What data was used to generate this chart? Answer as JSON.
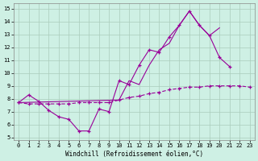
{
  "xlabel": "Windchill (Refroidissement éolien,°C)",
  "background_color": "#cef0e4",
  "grid_color": "#aaccbb",
  "line_color": "#990099",
  "xlim": [
    -0.5,
    23.5
  ],
  "ylim": [
    4.8,
    15.4
  ],
  "xticks": [
    0,
    1,
    2,
    3,
    4,
    5,
    6,
    7,
    8,
    9,
    10,
    11,
    12,
    13,
    14,
    15,
    16,
    17,
    18,
    19,
    20,
    21,
    22,
    23
  ],
  "yticks": [
    5,
    6,
    7,
    8,
    9,
    10,
    11,
    12,
    13,
    14,
    15
  ],
  "line1_x": [
    0,
    1,
    2,
    3,
    4,
    5,
    6,
    7,
    8,
    9,
    10,
    11,
    12,
    13,
    14,
    15,
    16,
    17,
    18,
    19,
    20,
    21
  ],
  "line1_y": [
    7.7,
    8.3,
    7.8,
    7.1,
    6.6,
    6.4,
    5.5,
    5.5,
    7.2,
    7.0,
    9.4,
    9.1,
    10.6,
    11.8,
    11.6,
    12.8,
    13.7,
    14.8,
    13.7,
    12.9,
    11.2,
    10.5
  ],
  "line2_x": [
    0,
    1,
    2,
    3,
    4,
    5,
    6,
    7,
    8,
    9,
    10,
    11,
    12,
    13,
    14,
    15,
    16,
    17,
    18,
    19,
    20,
    21,
    22,
    23
  ],
  "line2_y": [
    7.7,
    7.6,
    7.6,
    7.6,
    7.6,
    7.6,
    7.7,
    7.7,
    7.7,
    7.7,
    7.9,
    8.1,
    8.2,
    8.4,
    8.5,
    8.7,
    8.8,
    8.9,
    8.9,
    9.0,
    9.0,
    9.0,
    9.0,
    8.9
  ],
  "line3_x": [
    0,
    10,
    11,
    12,
    13,
    14,
    15,
    16,
    17,
    18,
    19,
    20
  ],
  "line3_y": [
    7.7,
    7.9,
    9.4,
    9.1,
    10.6,
    11.8,
    12.3,
    13.7,
    14.8,
    13.7,
    12.9,
    13.5
  ]
}
